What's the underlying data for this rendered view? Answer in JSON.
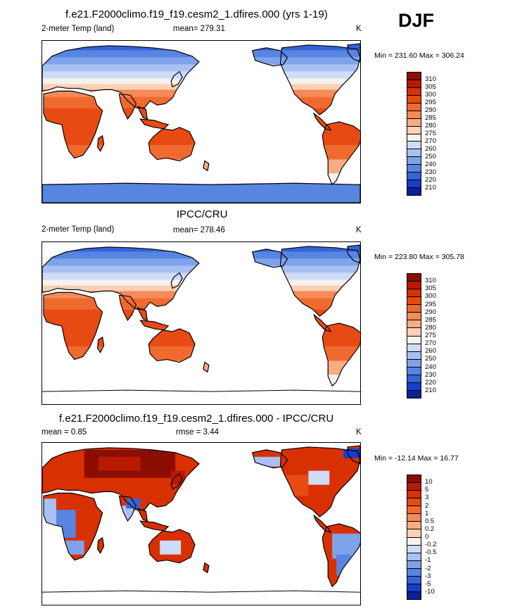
{
  "season": "DJF",
  "land": "#000000",
  "panels": [
    {
      "title": "f.e21.F2000climo.f19_f19.cesm2_1.dfires.000 (yrs 1-19)",
      "left_label": "2-meter Temp (land)",
      "center_label": "mean= 279.31",
      "unit": "K",
      "minmax": "Min = 231.60 Max = 306.24",
      "colorbar": {
        "levels": [
          "310",
          "305",
          "300",
          "295",
          "290",
          "285",
          "280",
          "275",
          "270",
          "260",
          "250",
          "240",
          "230",
          "220",
          "210"
        ],
        "colors": [
          "#8b0d00",
          "#b81a00",
          "#d83000",
          "#e84a14",
          "#f06a30",
          "#f58b58",
          "#f8ac82",
          "#fbd0b4",
          "#f6f2ee",
          "#cfdcf8",
          "#a8c1f2",
          "#7fa3ea",
          "#5885e2",
          "#3563d8",
          "#183dc8",
          "#0b1f96"
        ]
      },
      "map_type": "abs",
      "antarctica": true
    },
    {
      "title": "IPCC/CRU",
      "left_label": "2-meter Temp (land)",
      "center_label": "mean= 278.46",
      "unit": "K",
      "minmax": "Min = 223.80 Max = 305.78",
      "colorbar": {
        "levels": [
          "310",
          "305",
          "300",
          "295",
          "290",
          "285",
          "280",
          "275",
          "270",
          "260",
          "250",
          "240",
          "230",
          "220",
          "210"
        ],
        "colors": [
          "#8b0d00",
          "#b81a00",
          "#d83000",
          "#e84a14",
          "#f06a30",
          "#f58b58",
          "#f8ac82",
          "#fbd0b4",
          "#f6f2ee",
          "#cfdcf8",
          "#a8c1f2",
          "#7fa3ea",
          "#5885e2",
          "#3563d8",
          "#183dc8",
          "#0b1f96"
        ]
      },
      "map_type": "abs",
      "antarctica": false
    },
    {
      "title": "f.e21.F2000climo.f19_f19.cesm2_1.dfires.000 - IPCC/CRU",
      "left_label": "mean =   0.85",
      "center_label": "rmse =    3.44",
      "unit": "K",
      "minmax": "Min = -12.14 Max =  16.77",
      "colorbar": {
        "levels": [
          "10",
          "5",
          "3",
          "2",
          "1",
          "0.5",
          "0.2",
          "0",
          "-0.2",
          "-0.5",
          "-1",
          "-2",
          "-3",
          "-5",
          "-10"
        ],
        "colors": [
          "#8b0d00",
          "#b81a00",
          "#d83000",
          "#e84a14",
          "#f06a30",
          "#f58b58",
          "#f8ac82",
          "#fbd0b4",
          "#f6f2ee",
          "#cfdcf8",
          "#a8c1f2",
          "#7fa3ea",
          "#5885e2",
          "#3563d8",
          "#183dc8",
          "#0b1f96"
        ]
      },
      "map_type": "diff",
      "antarctica": false
    }
  ]
}
